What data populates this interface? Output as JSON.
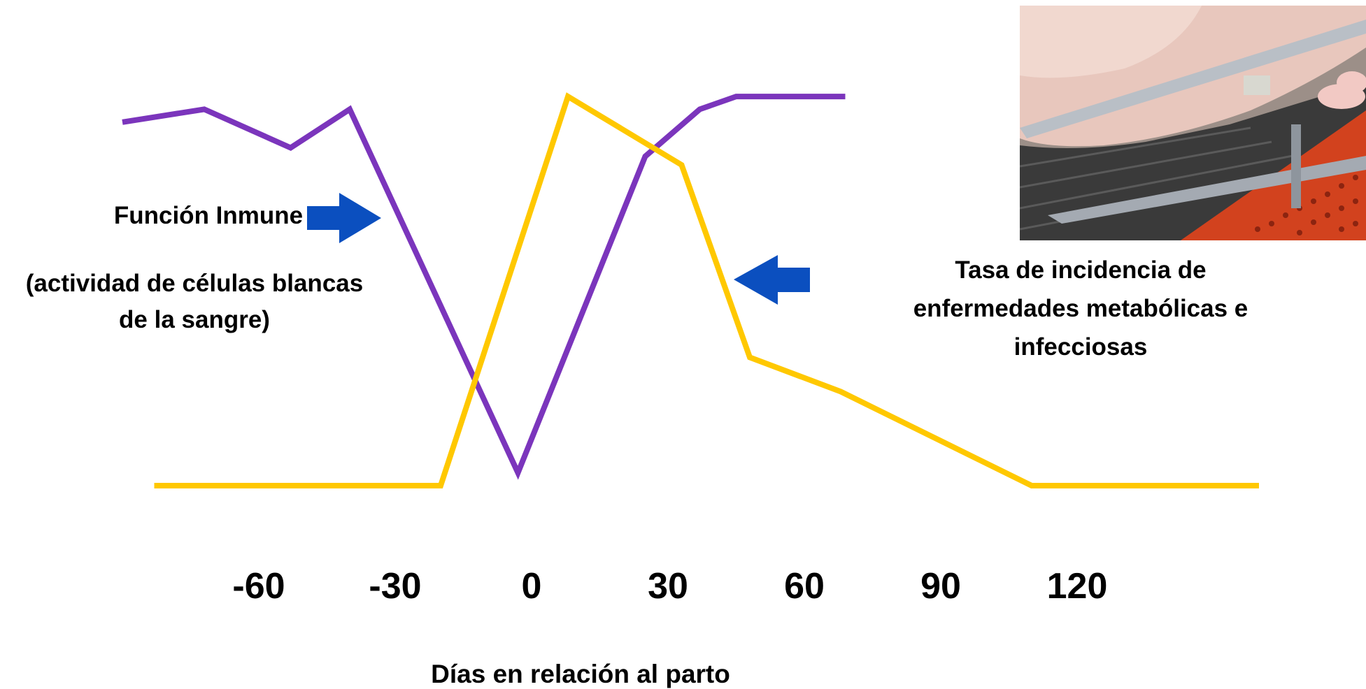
{
  "chart_data": {
    "type": "line",
    "xlabel": "Días en relación al parto",
    "x_ticks": [
      -60,
      -30,
      0,
      30,
      60,
      90,
      120
    ],
    "xlim": [
      -90,
      150
    ],
    "ylim": [
      0,
      100
    ],
    "grid": false,
    "series": [
      {
        "name": "Función Inmune",
        "name_sub": "(actividad de células blancas de la sangre)",
        "color": "#7B35BC",
        "points": [
          [
            -90,
            85
          ],
          [
            -72,
            88
          ],
          [
            -53,
            79
          ],
          [
            -40,
            88
          ],
          [
            -3,
            3
          ],
          [
            25,
            77
          ],
          [
            37,
            88
          ],
          [
            45,
            91
          ],
          [
            69,
            91
          ]
        ]
      },
      {
        "name": "Tasa de incidencia de enfermedades metabólicas e infecciosas",
        "color": "#FFC800",
        "points": [
          [
            -83,
            0
          ],
          [
            -20,
            0
          ],
          [
            8,
            91
          ],
          [
            33,
            75
          ],
          [
            48,
            30
          ],
          [
            68,
            22
          ],
          [
            110,
            0
          ],
          [
            160,
            0
          ]
        ]
      }
    ],
    "arrows": [
      {
        "direction": "right",
        "color": "#0B4FBF"
      },
      {
        "direction": "left",
        "color": "#0B4FBF"
      }
    ]
  },
  "labels": {
    "immune_title": "Función Inmune",
    "immune_sub_1": "(actividad de células blancas",
    "immune_sub_2": "de la sangre)",
    "disease_1": "Tasa de incidencia de",
    "disease_2": "enfermedades metabólicas e",
    "disease_3": "infecciosas"
  },
  "photo": {
    "description_icon": "sow-and-piglets-photo",
    "colors": {
      "floor": "#D2421E",
      "slats": "#3A3A3A",
      "sow": "#E8C7BD",
      "bar": "#B9BFC6"
    }
  }
}
